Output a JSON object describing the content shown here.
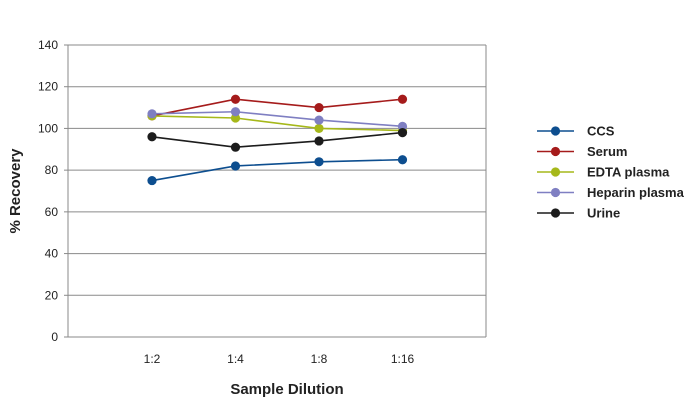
{
  "chart_data": {
    "type": "line",
    "title": "",
    "xlabel": "Sample Dilution",
    "ylabel": "% Recovery",
    "categories": [
      "1:2",
      "1:4",
      "1:8",
      "1:16"
    ],
    "ylim": [
      0,
      140
    ],
    "yticks": [
      "0",
      "20",
      "40",
      "60",
      "80",
      "100",
      "120",
      "140"
    ],
    "grid": true,
    "legend_position": "right",
    "series": [
      {
        "name": "CCS",
        "color": "#0d4e8f",
        "values": [
          75,
          82,
          84,
          85
        ]
      },
      {
        "name": "Serum",
        "color": "#a51b1b",
        "values": [
          106,
          114,
          110,
          114
        ]
      },
      {
        "name": "EDTA plasma",
        "color": "#a6b81a",
        "values": [
          106,
          105,
          100,
          99
        ]
      },
      {
        "name": "Heparin plasma",
        "color": "#7f7fc2",
        "values": [
          107,
          108,
          104,
          101
        ]
      },
      {
        "name": "Urine",
        "color": "#1c1c1c",
        "values": [
          96,
          91,
          94,
          98
        ]
      }
    ]
  }
}
